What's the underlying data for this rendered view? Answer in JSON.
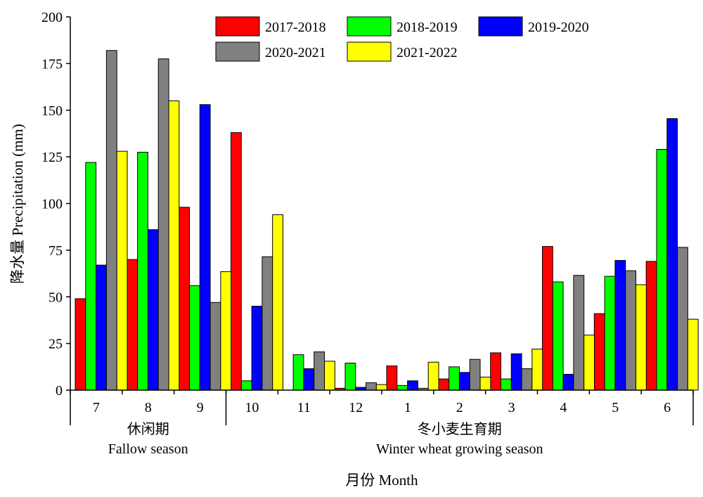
{
  "chart_data": {
    "type": "bar",
    "ylabel": "降水量 Precipitation (mm)",
    "xlabel": "月份 Month",
    "ylim": [
      0,
      200
    ],
    "yticks": [
      0,
      25,
      50,
      75,
      100,
      125,
      150,
      175,
      200
    ],
    "categories": [
      "7",
      "8",
      "9",
      "10",
      "11",
      "12",
      "1",
      "2",
      "3",
      "4",
      "5",
      "6"
    ],
    "groups": [
      {
        "zh": "休闲期",
        "en": "Fallow season",
        "categories": [
          "7",
          "8",
          "9"
        ]
      },
      {
        "zh": "冬小麦生育期",
        "en": "Winter wheat growing season",
        "categories": [
          "10",
          "11",
          "12",
          "1",
          "2",
          "3",
          "4",
          "5",
          "6"
        ]
      }
    ],
    "legend_position": "top",
    "series": [
      {
        "name": "2017-2018",
        "color": "#ff0000",
        "values": [
          49,
          70,
          98,
          138,
          0,
          1,
          13,
          6,
          20,
          77,
          41,
          69
        ]
      },
      {
        "name": "2018-2019",
        "color": "#00ff00",
        "values": [
          122,
          127.5,
          56,
          5,
          19,
          14.5,
          2.5,
          12.5,
          6,
          58,
          61,
          129
        ]
      },
      {
        "name": "2019-2020",
        "color": "#0000ff",
        "values": [
          67,
          86,
          153,
          45,
          11.5,
          1.5,
          5,
          9.5,
          19.5,
          8.5,
          69.5,
          145.5
        ]
      },
      {
        "name": "2020-2021",
        "color": "#808080",
        "values": [
          182,
          177.5,
          47,
          71.5,
          20.5,
          4,
          1,
          16.5,
          11.5,
          61.5,
          64,
          76.5
        ]
      },
      {
        "name": "2021-2022",
        "color": "#ffff00",
        "values": [
          128,
          155,
          63.5,
          94,
          15.5,
          3,
          15,
          7,
          22,
          29.5,
          56.5,
          38
        ]
      }
    ]
  }
}
